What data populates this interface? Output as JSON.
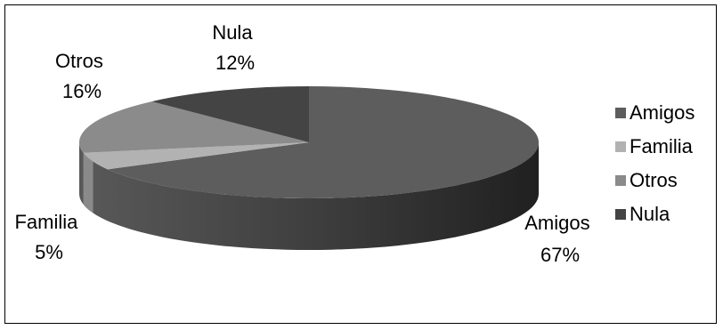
{
  "chart_data": {
    "type": "pie",
    "title": "",
    "categories": [
      "Amigos",
      "Familia",
      "Otros",
      "Nula"
    ],
    "values": [
      67,
      5,
      16,
      12
    ],
    "labels": [
      "Amigos\n67%",
      "Familia\n5%",
      "Otros\n16%",
      "Nula\n12%"
    ],
    "legend": {
      "position": "right",
      "items": [
        "Amigos",
        "Familia",
        "Otros",
        "Nula"
      ]
    },
    "colors": [
      "#5d5d5d",
      "#b2b2b2",
      "#8b8b8b",
      "#444444"
    ],
    "is_3d": true
  }
}
